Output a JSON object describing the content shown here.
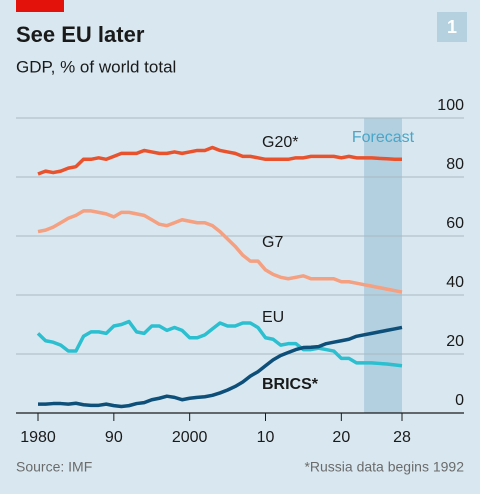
{
  "chart_data": {
    "type": "line",
    "title": "See EU later",
    "subtitle": "GDP, % of world total",
    "badge": "1",
    "source": "Source: IMF",
    "note": "*Russia data begins 1992",
    "forecast": {
      "label": "Forecast",
      "xlim": [
        2023,
        2028
      ]
    },
    "x": [
      1980,
      1981,
      1982,
      1983,
      1984,
      1985,
      1986,
      1987,
      1988,
      1989,
      1990,
      1991,
      1992,
      1993,
      1994,
      1995,
      1996,
      1997,
      1998,
      1999,
      2000,
      2001,
      2002,
      2003,
      2004,
      2005,
      2006,
      2007,
      2008,
      2009,
      2010,
      2011,
      2012,
      2013,
      2014,
      2015,
      2016,
      2017,
      2018,
      2019,
      2020,
      2021,
      2022,
      2023,
      2024,
      2025,
      2026,
      2027,
      2028
    ],
    "series": [
      {
        "name": "G20*",
        "color": "#e8532e",
        "values": [
          81,
          82,
          81.5,
          82,
          83,
          83.5,
          86,
          86,
          86.5,
          86,
          87,
          88,
          88,
          88,
          89,
          88.5,
          88,
          88,
          88.5,
          88,
          88.5,
          89,
          89,
          90,
          89,
          88.5,
          88,
          87,
          87,
          86.5,
          86,
          86,
          86,
          86,
          86.5,
          86.5,
          87,
          87,
          87,
          87,
          86.5,
          87,
          86.5,
          86.5,
          86.5,
          86.3,
          86.2,
          86,
          86
        ]
      },
      {
        "name": "G7",
        "color": "#f4a081",
        "values": [
          61.5,
          62,
          63,
          64.5,
          66,
          67,
          68.5,
          68.5,
          68,
          67.5,
          66.5,
          68,
          68,
          67.5,
          67,
          65.5,
          64,
          63.5,
          64.5,
          65.5,
          65,
          64.5,
          64.5,
          63.5,
          61.5,
          59,
          56.5,
          53.5,
          51.5,
          51.5,
          48.5,
          47,
          46,
          45.5,
          46,
          46.5,
          45.5,
          45.5,
          45.5,
          45.5,
          44.5,
          44.5,
          44,
          43.5,
          43,
          42.5,
          42,
          41.5,
          41
        ]
      },
      {
        "name": "EU",
        "color": "#2bbfcf",
        "values": [
          27,
          24.5,
          24,
          23,
          21,
          21,
          26,
          27.5,
          27.5,
          27,
          29.5,
          30,
          31,
          27.5,
          27,
          29.5,
          29.5,
          28,
          29,
          28,
          25.5,
          25.5,
          26.5,
          28.5,
          30.5,
          29.5,
          29.5,
          30.5,
          30.5,
          29,
          25.5,
          25,
          23,
          23.5,
          23.5,
          21.5,
          21.5,
          22,
          21.5,
          21,
          18.5,
          18.5,
          17,
          17,
          17,
          16.8,
          16.6,
          16.3,
          16
        ]
      },
      {
        "name": "BRICS*",
        "color": "#0e4f7a",
        "values": [
          3,
          3,
          3.2,
          3.2,
          3,
          3.3,
          2.8,
          2.6,
          2.6,
          3,
          2.5,
          2.2,
          2.5,
          3.2,
          3.5,
          4.5,
          5,
          5.7,
          5.3,
          4.5,
          5,
          5.3,
          5.5,
          6,
          6.8,
          7.8,
          9,
          10.5,
          12.5,
          14,
          16,
          18,
          19.5,
          20.5,
          21.5,
          22.2,
          22.3,
          22.5,
          23.5,
          24,
          24.5,
          25,
          26,
          26.5,
          27,
          27.5,
          28,
          28.5,
          29
        ]
      }
    ],
    "xlim": [
      1980,
      2028
    ],
    "xticks": [
      {
        "value": 1980,
        "label": "1980"
      },
      {
        "value": 1990,
        "label": "90"
      },
      {
        "value": 2000,
        "label": "2000"
      },
      {
        "value": 2010,
        "label": "10"
      },
      {
        "value": 2020,
        "label": "20"
      },
      {
        "value": 2028,
        "label": "28"
      }
    ],
    "ylim": [
      0,
      100
    ],
    "yticks": [
      0,
      20,
      40,
      60,
      80,
      100
    ],
    "grid": true
  }
}
